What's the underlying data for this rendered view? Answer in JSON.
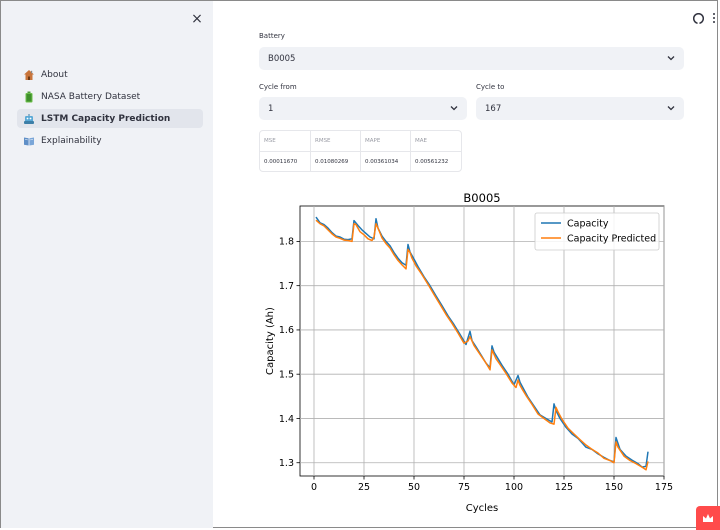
{
  "sidebar": {
    "close_glyph": "×",
    "items": [
      {
        "label": "About",
        "icon": "house-icon",
        "active": false
      },
      {
        "label": "NASA Battery Dataset",
        "icon": "battery-icon",
        "active": false
      },
      {
        "label": "LSTM Capacity Prediction",
        "icon": "robot-icon",
        "active": true
      },
      {
        "label": "Explainability",
        "icon": "book-icon",
        "active": false
      }
    ]
  },
  "toolbar": {
    "icons": [
      "github-icon",
      "more-menu-icon"
    ]
  },
  "form": {
    "battery": {
      "label": "Battery",
      "value": "B0005"
    },
    "cycle_from": {
      "label": "Cycle from",
      "value": "1"
    },
    "cycle_to": {
      "label": "Cycle to",
      "value": "167"
    }
  },
  "metrics": {
    "headers": [
      "MSE",
      "RMSE",
      "MAPE",
      "MAE"
    ],
    "values": [
      "0.00011670",
      "0.01080269",
      "0.00361034",
      "0.00561232"
    ]
  },
  "colors": {
    "capacity": "#1f77b4",
    "predicted": "#ff7f0e",
    "accent": "#ff4b4b",
    "sidebar_bg": "#f0f2f6"
  },
  "chart_data": {
    "type": "line",
    "title": "B0005",
    "xlabel": "Cycles",
    "ylabel": "Capacity (Ah)",
    "xlim": [
      -7,
      175
    ],
    "ylim": [
      1.27,
      1.88
    ],
    "xticks": [
      0,
      25,
      50,
      75,
      100,
      125,
      150,
      175
    ],
    "xtick_labels": [
      "0",
      "25",
      "50",
      "75",
      "100",
      "125",
      "150",
      "175"
    ],
    "yticks": [
      1.3,
      1.4,
      1.5,
      1.6,
      1.7,
      1.8
    ],
    "ytick_labels": [
      "1.3",
      "1.4",
      "1.5",
      "1.6",
      "1.7",
      "1.8"
    ],
    "grid": true,
    "legend": "upper right",
    "series": [
      {
        "name": "Capacity",
        "color": "#1f77b4",
        "x": [
          1,
          3,
          5,
          7,
          9,
          11,
          13,
          15,
          17,
          19,
          20,
          22,
          24,
          26,
          28,
          30,
          31,
          32,
          34,
          36,
          38,
          40,
          42,
          44,
          46,
          47,
          48,
          50,
          52,
          55,
          58,
          61,
          64,
          67,
          70,
          73,
          76,
          78,
          79,
          81,
          84,
          86,
          88,
          89,
          90,
          92,
          94,
          97,
          100,
          102,
          103,
          105,
          107,
          110,
          113,
          116,
          119,
          120,
          121,
          123,
          126,
          129,
          132,
          134,
          136,
          139,
          142,
          145,
          148,
          150,
          151,
          153,
          156,
          159,
          162,
          164,
          166,
          167
        ],
        "y": [
          1.855,
          1.842,
          1.838,
          1.83,
          1.82,
          1.812,
          1.81,
          1.805,
          1.804,
          1.806,
          1.847,
          1.836,
          1.826,
          1.818,
          1.81,
          1.806,
          1.851,
          1.83,
          1.812,
          1.8,
          1.79,
          1.775,
          1.762,
          1.752,
          1.746,
          1.793,
          1.776,
          1.76,
          1.743,
          1.72,
          1.7,
          1.677,
          1.655,
          1.632,
          1.612,
          1.59,
          1.567,
          1.597,
          1.576,
          1.562,
          1.54,
          1.525,
          1.515,
          1.564,
          1.55,
          1.535,
          1.52,
          1.5,
          1.476,
          1.497,
          1.482,
          1.465,
          1.448,
          1.428,
          1.408,
          1.4,
          1.392,
          1.433,
          1.418,
          1.4,
          1.38,
          1.365,
          1.355,
          1.345,
          1.335,
          1.33,
          1.32,
          1.312,
          1.305,
          1.302,
          1.357,
          1.33,
          1.315,
          1.306,
          1.298,
          1.29,
          1.292,
          1.325
        ]
      },
      {
        "name": "Capacity Predicted",
        "color": "#ff7f0e",
        "x": [
          1,
          3,
          5,
          7,
          9,
          11,
          13,
          15,
          17,
          19,
          20,
          21,
          23,
          25,
          27,
          29,
          30,
          31,
          32,
          34,
          36,
          38,
          40,
          42,
          44,
          46,
          47,
          48,
          49,
          51,
          54,
          57,
          60,
          63,
          66,
          69,
          72,
          75,
          77,
          78,
          79,
          80,
          83,
          86,
          88,
          89,
          90,
          91,
          93,
          96,
          99,
          101,
          102,
          103,
          104,
          106,
          109,
          112,
          115,
          118,
          120,
          121,
          122,
          124,
          127,
          130,
          133,
          136,
          139,
          142,
          145,
          148,
          150,
          151,
          152,
          155,
          158,
          161,
          164,
          166,
          167
        ],
        "y": [
          1.848,
          1.84,
          1.835,
          1.826,
          1.817,
          1.81,
          1.807,
          1.803,
          1.802,
          1.8,
          1.84,
          1.838,
          1.822,
          1.815,
          1.806,
          1.802,
          1.81,
          1.84,
          1.83,
          1.808,
          1.795,
          1.785,
          1.77,
          1.757,
          1.747,
          1.738,
          1.782,
          1.775,
          1.762,
          1.745,
          1.725,
          1.703,
          1.68,
          1.658,
          1.635,
          1.615,
          1.593,
          1.57,
          1.575,
          1.585,
          1.575,
          1.565,
          1.545,
          1.525,
          1.51,
          1.555,
          1.545,
          1.535,
          1.522,
          1.502,
          1.48,
          1.47,
          1.487,
          1.475,
          1.467,
          1.452,
          1.432,
          1.41,
          1.4,
          1.39,
          1.387,
          1.425,
          1.415,
          1.398,
          1.378,
          1.365,
          1.352,
          1.34,
          1.33,
          1.322,
          1.31,
          1.305,
          1.3,
          1.347,
          1.335,
          1.315,
          1.305,
          1.298,
          1.29,
          1.284,
          1.303
        ]
      }
    ]
  }
}
